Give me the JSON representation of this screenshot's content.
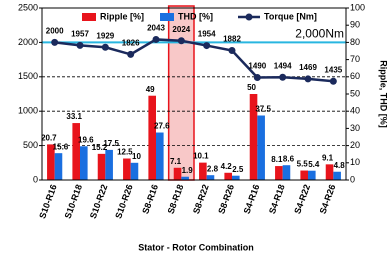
{
  "chart_data": {
    "type": "bar",
    "x_label": "Stator - Rotor Combination",
    "y2_label": "Ripple, THD [%]",
    "categories": [
      "S10-R16",
      "S10-R18",
      "S10-R22",
      "S10-R26",
      "S8-R16",
      "S8-R18",
      "S8-R22",
      "S8-R26",
      "S4-R16",
      "S4-R18",
      "S4-R22",
      "S4-R26"
    ],
    "series": [
      {
        "name": "Ripple [%]",
        "type": "bar",
        "axis": "y2",
        "color": "#e8141c",
        "values": [
          20.7,
          33.1,
          15.2,
          12.5,
          49,
          7.1,
          10.1,
          4.2,
          50,
          8.1,
          5.5,
          9.1
        ]
      },
      {
        "name": "THD [%]",
        "type": "bar",
        "axis": "y2",
        "color": "#1a6fe0",
        "values": [
          15.6,
          19.6,
          17.5,
          10,
          27.6,
          1.9,
          2.8,
          2.5,
          37.5,
          8.6,
          5.4,
          4.8
        ]
      },
      {
        "name": "Torque [Nm]",
        "type": "line",
        "axis": "y",
        "color": "#1b2a5c",
        "values": [
          2000,
          1957,
          1929,
          1826,
          2043,
          2024,
          1954,
          1882,
          1490,
          1494,
          1469,
          1435
        ]
      }
    ],
    "ylim": [
      0,
      2500
    ],
    "yticks": [
      0,
      500,
      1000,
      1500,
      2000,
      2500
    ],
    "y2lim": [
      0,
      100
    ],
    "y2ticks": [
      0,
      10,
      20,
      30,
      40,
      50,
      60,
      70,
      80,
      90,
      100
    ],
    "grid": true,
    "reference_lines": [
      {
        "value": 2000,
        "label": "2,000Nm",
        "color": "#29b6e0"
      }
    ],
    "highlight_category": "S8-R18"
  }
}
